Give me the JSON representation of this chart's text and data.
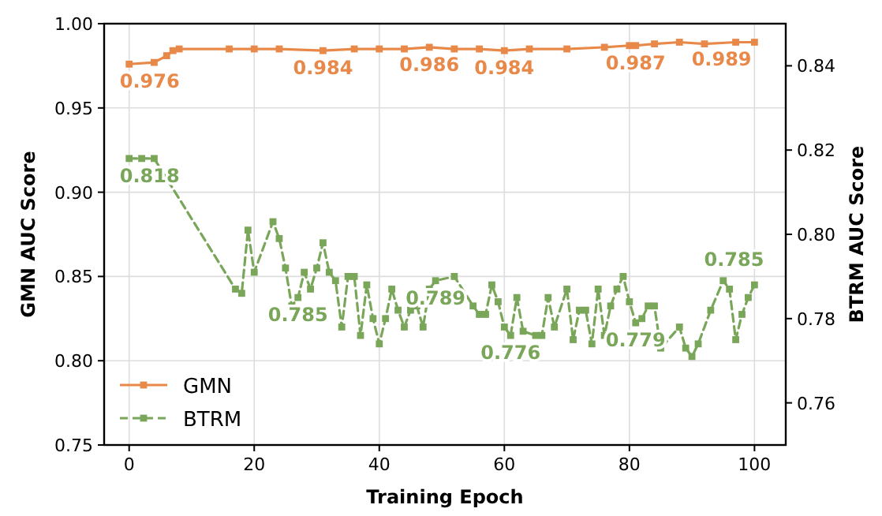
{
  "chart_data": {
    "type": "line",
    "xlabel": "Training Epoch",
    "ylabel": "GMN AUC Score",
    "y2label": "BTRM AUC Score",
    "xlim": [
      -4,
      105
    ],
    "xticks": [
      0,
      20,
      40,
      60,
      80,
      100
    ],
    "ylim": [
      0.75,
      1.0
    ],
    "yticks": [
      0.75,
      {
        "value": 0.8,
        "label": "0.80"
      },
      0.85,
      {
        "value": 0.9,
        "label": "0.90"
      },
      0.95,
      {
        "value": 1.0,
        "label": "1.00"
      }
    ],
    "y2lim": [
      0.75,
      0.85
    ],
    "y2ticks": [
      0.76,
      0.78,
      {
        "value": 0.8,
        "label": "0.80"
      },
      0.82,
      0.84
    ],
    "grid": true,
    "legend": "bottom left",
    "marker": "square",
    "series": [
      {
        "name": "GMN",
        "color": "#e8894a",
        "line_style": "solid",
        "x": [
          0,
          4,
          6,
          7,
          8,
          16,
          20,
          24,
          31,
          36,
          40,
          44,
          48,
          52,
          56,
          60,
          64,
          70,
          76,
          80,
          81,
          84,
          88,
          92,
          97,
          100
        ],
        "values": [
          0.976,
          0.977,
          0.981,
          0.984,
          0.985,
          0.985,
          0.985,
          0.985,
          0.984,
          0.985,
          0.985,
          0.985,
          0.986,
          0.985,
          0.985,
          0.984,
          0.985,
          0.985,
          0.986,
          0.987,
          0.987,
          0.988,
          0.989,
          0.988,
          0.989,
          0.989
        ],
        "value_labels": [
          "0.976",
          null,
          null,
          null,
          null,
          null,
          null,
          null,
          "0.984",
          null,
          null,
          null,
          "0.986",
          null,
          null,
          "0.984",
          null,
          null,
          null,
          null,
          "0.987",
          null,
          null,
          null,
          "0.989",
          null
        ]
      },
      {
        "name": "BTRM",
        "color": "#7aa65a",
        "line_style": "dashed",
        "axis": "y2",
        "x": [
          0,
          2,
          4,
          17,
          18,
          19,
          20,
          23,
          24,
          25,
          26,
          27,
          28,
          29,
          30,
          31,
          32,
          33,
          34,
          35,
          36,
          37,
          38,
          39,
          40,
          41,
          42,
          43,
          44,
          45,
          46,
          47,
          48,
          49,
          52,
          55,
          56,
          57,
          58,
          59,
          60,
          61,
          62,
          63,
          65,
          66,
          67,
          68,
          70,
          71,
          72,
          73,
          74,
          75,
          76,
          77,
          78,
          79,
          80,
          81,
          82,
          83,
          84,
          85,
          88,
          89,
          90,
          91,
          93,
          95,
          96,
          97,
          98,
          99,
          100
        ],
        "values": [
          0.818,
          0.818,
          0.818,
          0.787,
          0.786,
          0.801,
          0.791,
          0.803,
          0.799,
          0.792,
          0.783,
          0.785,
          0.791,
          0.787,
          0.792,
          0.798,
          0.791,
          0.789,
          0.778,
          0.79,
          0.79,
          0.776,
          0.788,
          0.78,
          0.774,
          0.78,
          0.787,
          0.782,
          0.778,
          0.782,
          0.783,
          0.778,
          0.787,
          0.789,
          0.79,
          0.783,
          0.781,
          0.781,
          0.788,
          0.784,
          0.778,
          0.776,
          0.785,
          0.777,
          0.776,
          0.776,
          0.785,
          0.778,
          0.787,
          0.775,
          0.782,
          0.782,
          0.774,
          0.787,
          0.776,
          0.783,
          0.787,
          0.79,
          0.784,
          0.779,
          0.78,
          0.783,
          0.783,
          0.773,
          0.778,
          0.773,
          0.771,
          0.774,
          0.782,
          0.789,
          0.787,
          0.775,
          0.781,
          0.785,
          0.788
        ],
        "value_labels": [
          "0.818",
          null,
          null,
          null,
          null,
          null,
          null,
          null,
          null,
          null,
          null,
          "0.785",
          null,
          null,
          null,
          null,
          null,
          null,
          null,
          null,
          null,
          null,
          null,
          null,
          null,
          null,
          null,
          null,
          null,
          null,
          null,
          null,
          null,
          "0.789",
          null,
          null,
          null,
          null,
          null,
          null,
          null,
          "0.776",
          null,
          null,
          null,
          null,
          null,
          null,
          null,
          null,
          null,
          null,
          null,
          null,
          null,
          null,
          null,
          null,
          null,
          "0.779",
          null,
          null,
          null,
          null,
          null,
          null,
          null,
          null,
          null,
          null,
          null,
          null,
          null,
          "0.785",
          null
        ]
      }
    ]
  }
}
